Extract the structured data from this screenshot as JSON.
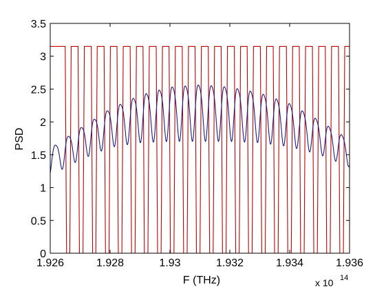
{
  "chart_data": {
    "type": "line",
    "xlabel": "F (THz)",
    "ylabel": "PSD",
    "x_multiplier": "x 10",
    "x_exponent": "14",
    "xlim": [
      1.926,
      1.936
    ],
    "ylim": [
      0,
      3.5
    ],
    "x_ticks": [
      "1.926",
      "1.928",
      "1.93",
      "1.932",
      "1.934",
      "1.936"
    ],
    "y_ticks": [
      "0",
      "0.5",
      "1",
      "1.5",
      "2",
      "2.5",
      "3",
      "3.5"
    ],
    "grid": false,
    "legend": "none",
    "series": [
      {
        "color": "#c00000",
        "style": "square-wave",
        "high": 3.15,
        "low": 0,
        "period": 0.000435,
        "edges": [
          {
            "rise": 1.9265,
            "fall": 1.9267
          },
          {
            "rise": 1.92693,
            "fall": 1.92714
          },
          {
            "rise": 1.92737,
            "fall": 1.92757
          },
          {
            "rise": 1.9278,
            "fall": 1.92801
          },
          {
            "rise": 1.92823,
            "fall": 1.92844
          },
          {
            "rise": 1.92867,
            "fall": 1.92888
          },
          {
            "rise": 1.9291,
            "fall": 1.92931
          },
          {
            "rise": 1.92954,
            "fall": 1.92975
          },
          {
            "rise": 1.92997,
            "fall": 1.93018
          },
          {
            "rise": 1.93041,
            "fall": 1.93062
          },
          {
            "rise": 1.93084,
            "fall": 1.93105
          },
          {
            "rise": 1.93128,
            "fall": 1.93149
          },
          {
            "rise": 1.93171,
            "fall": 1.93192
          },
          {
            "rise": 1.93215,
            "fall": 1.93236
          },
          {
            "rise": 1.93258,
            "fall": 1.93279
          },
          {
            "rise": 1.93302,
            "fall": 1.93323
          },
          {
            "rise": 1.93345,
            "fall": 1.93366
          },
          {
            "rise": 1.93389,
            "fall": 1.9341
          },
          {
            "rise": 1.93432,
            "fall": 1.93453
          },
          {
            "rise": 1.93476,
            "fall": 1.93497
          },
          {
            "rise": 1.93519,
            "fall": 1.9354
          },
          {
            "rise": 1.93563,
            "fall": 1.93584
          }
        ]
      },
      {
        "color": "#1a1a8c",
        "style": "oscillating-envelope",
        "period": 0.000435,
        "phase_x": 1.92607,
        "envelope_x": [
          1.926,
          1.927,
          1.928,
          1.929,
          1.93,
          1.931,
          1.932,
          1.933,
          1.934,
          1.935,
          1.936
        ],
        "envelope_mean": [
          1.42,
          1.7,
          1.95,
          2.1,
          2.18,
          2.2,
          2.18,
          2.12,
          2.0,
          1.8,
          1.55
        ],
        "envelope_amp": [
          0.24,
          0.28,
          0.34,
          0.42,
          0.48,
          0.5,
          0.48,
          0.44,
          0.38,
          0.3,
          0.24
        ]
      }
    ]
  }
}
